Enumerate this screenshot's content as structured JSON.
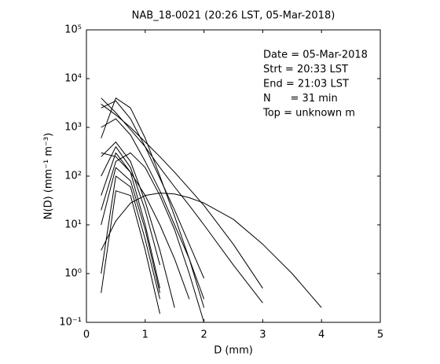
{
  "chart_data": {
    "type": "line",
    "title": "NAB_18-0021 (20:26 LST, 05-Mar-2018)",
    "xlabel": "D (mm)",
    "ylabel": "N(D) (mm⁻¹ m⁻³)",
    "yscale": "log",
    "xlim": [
      0,
      5
    ],
    "ylim": [
      0.1,
      100000
    ],
    "xticks": [
      0,
      1,
      2,
      3,
      4,
      5
    ],
    "yticks": [
      {
        "value": 0.1,
        "label": "10⁻¹"
      },
      {
        "value": 1,
        "label": "10⁰"
      },
      {
        "value": 10,
        "label": "10¹"
      },
      {
        "value": 100,
        "label": "10²"
      },
      {
        "value": 1000,
        "label": "10³"
      },
      {
        "value": 10000,
        "label": "10⁴"
      },
      {
        "value": 100000,
        "label": "10⁵"
      }
    ],
    "annotations": [
      "Date = 05-Mar-2018",
      "Strt = 20:33 LST",
      "End = 21:03 LST",
      "N      = 31 min",
      "Top = unknown m"
    ],
    "x": [
      0.25,
      0.5,
      0.75,
      1,
      1.25,
      1.5,
      1.75,
      2,
      2.5,
      3,
      3.5,
      4
    ],
    "series": [
      {
        "color": "#000000",
        "values": [
          3,
          12,
          28,
          40,
          45,
          43,
          36,
          28,
          13,
          4,
          1,
          0.2
        ]
      },
      {
        "color": "#000000",
        "values": [
          4000,
          2000,
          900,
          400,
          150,
          60,
          25,
          10,
          1.5,
          0.25,
          null,
          null
        ]
      },
      {
        "color": "#000000",
        "values": [
          2500,
          3500,
          1500,
          400,
          90,
          20,
          4,
          0.8,
          null,
          null,
          null,
          null
        ]
      },
      {
        "color": "#000000",
        "values": [
          600,
          4000,
          2500,
          600,
          100,
          15,
          2,
          0.2,
          null,
          null,
          null,
          null
        ]
      },
      {
        "color": "#000000",
        "values": [
          250,
          500,
          200,
          30,
          3,
          0.2,
          null,
          null,
          null,
          null,
          null,
          null
        ]
      },
      {
        "color": "#000000",
        "values": [
          100,
          400,
          150,
          20,
          1.5,
          null,
          null,
          null,
          null,
          null,
          null,
          null
        ]
      },
      {
        "color": "#000000",
        "values": [
          40,
          300,
          120,
          10,
          0.5,
          null,
          null,
          null,
          null,
          null,
          null,
          null
        ]
      },
      {
        "color": "#000000",
        "values": [
          10,
          150,
          80,
          8,
          0.4,
          null,
          null,
          null,
          null,
          null,
          null,
          null
        ]
      },
      {
        "color": "#000000",
        "values": [
          1,
          100,
          60,
          5,
          0.3,
          null,
          null,
          null,
          null,
          null,
          null,
          null
        ]
      },
      {
        "color": "#000000",
        "values": [
          0.4,
          50,
          40,
          3,
          0.15,
          null,
          null,
          null,
          null,
          null,
          null,
          null
        ]
      },
      {
        "color": "#000000",
        "values": [
          300,
          250,
          120,
          40,
          10,
          2,
          0.3,
          null,
          null,
          null,
          null,
          null
        ]
      },
      {
        "color": "#000000",
        "values": [
          1000,
          1500,
          700,
          200,
          50,
          10,
          2,
          0.3,
          null,
          null,
          null,
          null
        ]
      },
      {
        "color": "#000000",
        "values": [
          20,
          200,
          300,
          150,
          40,
          8,
          1,
          0.1,
          null,
          null,
          null,
          null
        ]
      },
      {
        "color": "#000000",
        "values": [
          3000,
          1800,
          1000,
          500,
          250,
          120,
          55,
          25,
          4,
          0.5,
          null,
          null
        ]
      }
    ]
  }
}
